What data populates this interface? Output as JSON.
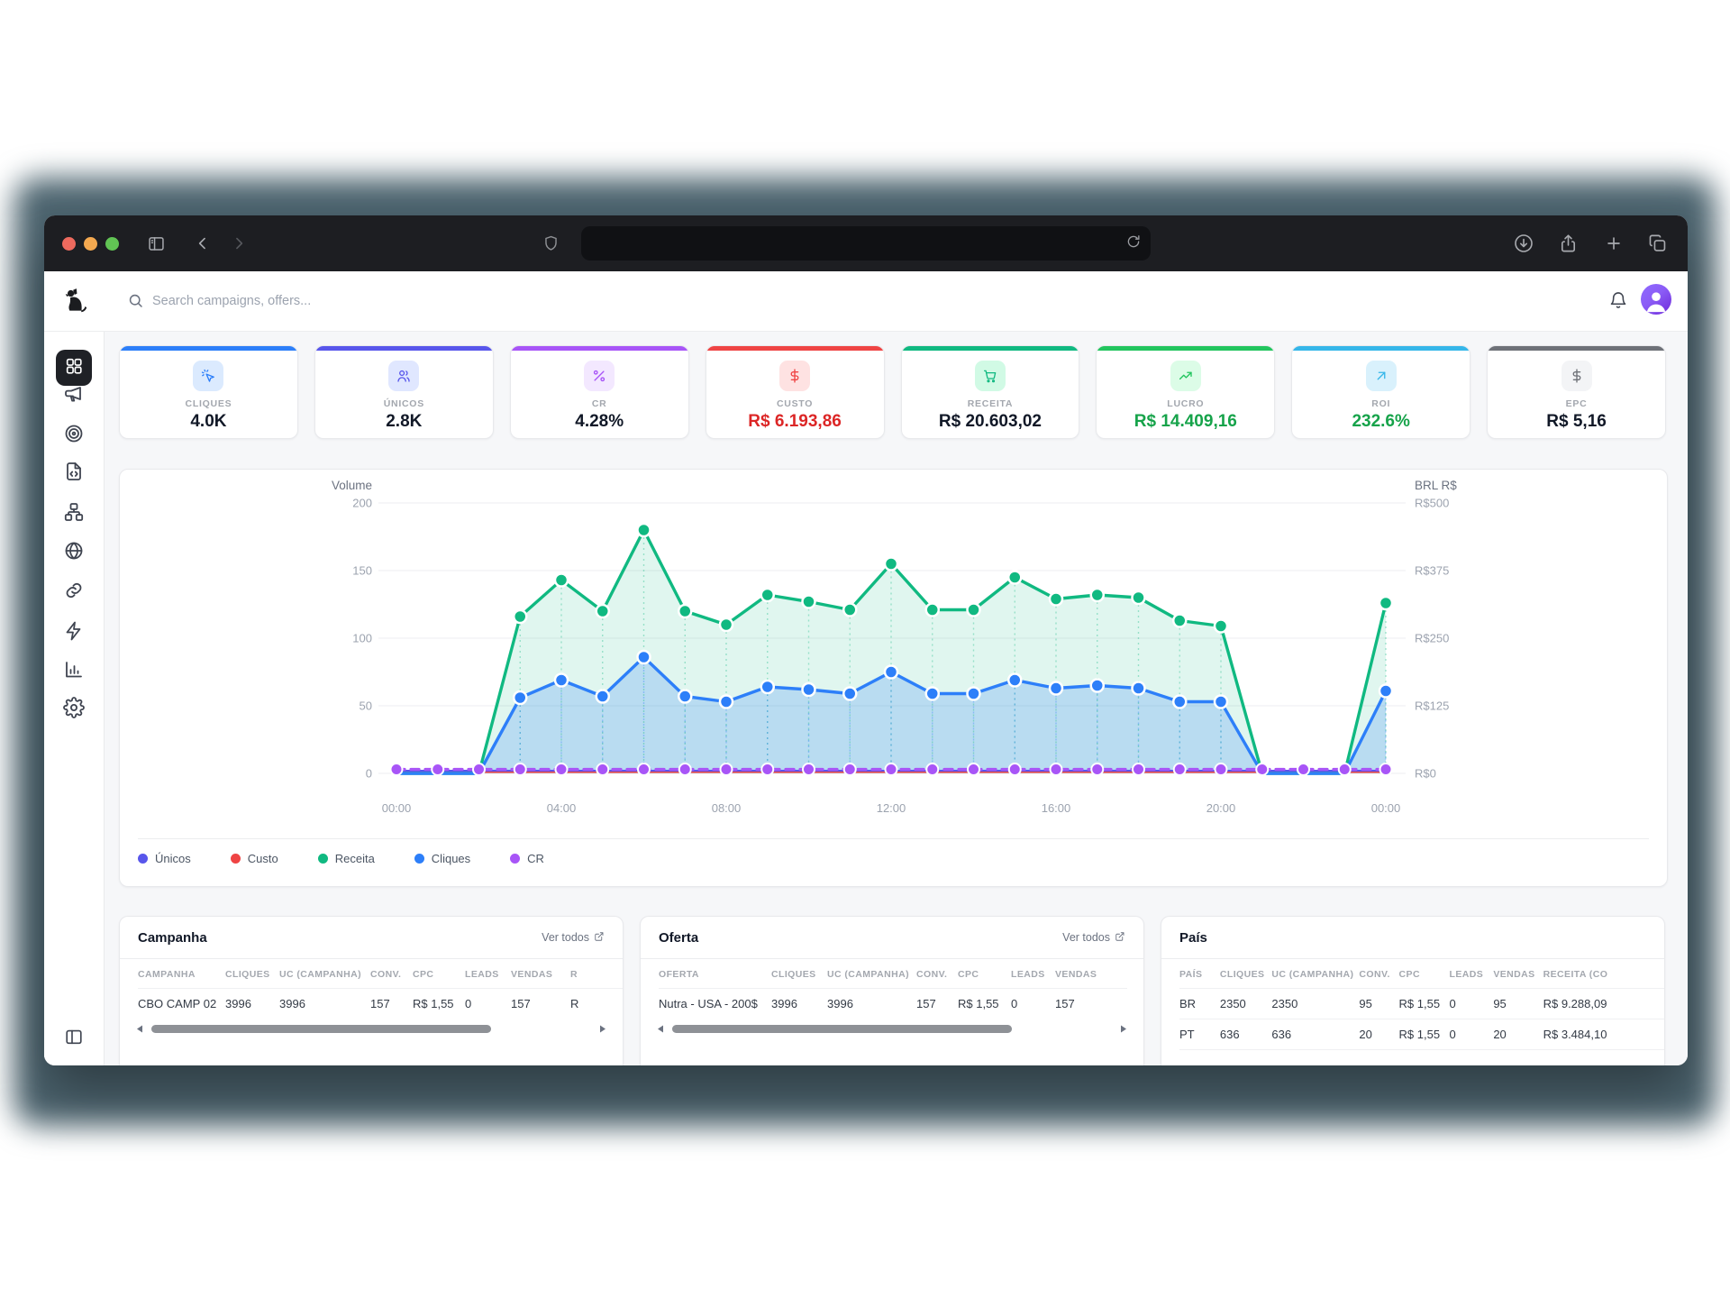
{
  "browser": {
    "traffic_lights": [
      "close",
      "minimize",
      "zoom"
    ],
    "toolbar_icon_names": [
      "panel-sidebar-icon",
      "back-icon",
      "forward-icon",
      "shield-icon",
      "reload-icon",
      "download-icon",
      "share-icon",
      "new-tab-icon",
      "tabs-icon"
    ],
    "url_value": ""
  },
  "app": {
    "logo_icon": "dog-logo",
    "header": {
      "search_placeholder": "Search campaigns, offers...",
      "icon_names": [
        "search-icon",
        "bell-icon",
        "user-avatar"
      ]
    },
    "sidebar": {
      "items": [
        {
          "id": "dashboard",
          "icon": "dashboard",
          "active": true
        },
        {
          "id": "campaigns",
          "icon": "megaphone",
          "active": false
        },
        {
          "id": "offers",
          "icon": "target",
          "active": false
        },
        {
          "id": "landers",
          "icon": "file-code",
          "active": false
        },
        {
          "id": "funnels",
          "icon": "sitemap",
          "active": false
        },
        {
          "id": "domains",
          "icon": "globe",
          "active": false
        },
        {
          "id": "links",
          "icon": "link",
          "active": false
        },
        {
          "id": "automation",
          "icon": "zap",
          "active": false
        },
        {
          "id": "reports",
          "icon": "bar-chart",
          "active": false
        },
        {
          "id": "settings",
          "icon": "gear",
          "active": false
        }
      ],
      "collapse_icon": "panel-left-icon"
    },
    "kpis": [
      {
        "label": "CLIQUES",
        "value": "4.0K",
        "accent": "#2d7ff9",
        "icon": "cursor-click",
        "icon_bg": "#dbeafe",
        "value_color": "#111827"
      },
      {
        "label": "ÚNICOS",
        "value": "2.8K",
        "accent": "#5856eb",
        "icon": "users",
        "icon_bg": "#e0e7ff",
        "value_color": "#111827"
      },
      {
        "label": "CR",
        "value": "4.28%",
        "accent": "#a855f7",
        "icon": "percent",
        "icon_bg": "#f3e8ff",
        "value_color": "#111827"
      },
      {
        "label": "CUSTO",
        "value": "R$ 6.193,86",
        "accent": "#ef4444",
        "icon": "dollar",
        "icon_bg": "#fee2e2",
        "value_color": "#dc2626"
      },
      {
        "label": "RECEITA",
        "value": "R$ 20.603,02",
        "accent": "#10b981",
        "icon": "cart",
        "icon_bg": "#d1fae5",
        "value_color": "#111827"
      },
      {
        "label": "LUCRO",
        "value": "R$ 14.409,16",
        "accent": "#22c55e",
        "icon": "trend-up",
        "icon_bg": "#dcfce7",
        "value_color": "#16a34a"
      },
      {
        "label": "ROI",
        "value": "232.6%",
        "accent": "#35b6e9",
        "icon": "arrow-up-right",
        "icon_bg": "#d9f1fc",
        "value_color": "#16a34a"
      },
      {
        "label": "EPC",
        "value": "R$ 5,16",
        "accent": "#6e7178",
        "icon": "dollar",
        "icon_bg": "#f3f4f6",
        "value_color": "#111827"
      }
    ],
    "chart_data": {
      "type": "line",
      "x": [
        "00:00",
        "01:00",
        "02:00",
        "03:00",
        "04:00",
        "05:00",
        "06:00",
        "07:00",
        "08:00",
        "09:00",
        "10:00",
        "11:00",
        "12:00",
        "13:00",
        "14:00",
        "15:00",
        "16:00",
        "17:00",
        "18:00",
        "19:00",
        "20:00",
        "21:00",
        "22:00",
        "23:00",
        "00:00"
      ],
      "x_tick_labels": [
        "00:00",
        "04:00",
        "08:00",
        "12:00",
        "16:00",
        "20:00",
        "00:00"
      ],
      "left_axis": {
        "title": "Volume",
        "ticks": [
          0,
          50,
          100,
          150,
          200
        ],
        "range": [
          0,
          200
        ]
      },
      "right_axis": {
        "title": "BRL R$",
        "ticks": [
          "R$0",
          "R$125",
          "R$250",
          "R$375",
          "R$500"
        ],
        "range": [
          0,
          500
        ]
      },
      "grid": true,
      "legend_position": "bottom",
      "series": [
        {
          "name": "Únicos",
          "color": "#5856eb",
          "area": false,
          "dashed": false,
          "dots": "none",
          "values": [
            2,
            2,
            2,
            2,
            2,
            2,
            2,
            2,
            2,
            2,
            2,
            2,
            2,
            2,
            2,
            2,
            2,
            2,
            2,
            2,
            2,
            2,
            2,
            2,
            2
          ]
        },
        {
          "name": "Custo",
          "color": "#ef4444",
          "area": false,
          "dashed": false,
          "dots": "none",
          "values": [
            1,
            1,
            1,
            1,
            1,
            1,
            1,
            1,
            1,
            1,
            1,
            1,
            1,
            1,
            1,
            1,
            1,
            1,
            1,
            1,
            1,
            1,
            1,
            1,
            1
          ]
        },
        {
          "name": "Receita",
          "color": "#10b981",
          "fill": "rgba(16,185,129,0.13)",
          "area": true,
          "dashed": false,
          "dots": "nonzero",
          "values": [
            0,
            0,
            0,
            116,
            143,
            120,
            180,
            120,
            110,
            132,
            127,
            121,
            155,
            121,
            121,
            145,
            129,
            132,
            130,
            113,
            109,
            0,
            0,
            0,
            126
          ]
        },
        {
          "name": "Cliques",
          "color": "#2d7ff9",
          "fill": "rgba(45,127,249,0.22)",
          "area": true,
          "dashed": false,
          "dots": "nonzero",
          "values": [
            0,
            0,
            0,
            56,
            69,
            57,
            86,
            57,
            53,
            64,
            62,
            59,
            75,
            59,
            59,
            69,
            63,
            65,
            63,
            53,
            53,
            0,
            0,
            0,
            61
          ]
        },
        {
          "name": "CR",
          "color": "#a855f7",
          "area": false,
          "dashed": true,
          "dots": "all",
          "values": [
            3,
            3,
            3,
            3,
            3,
            3,
            3,
            3,
            3,
            3,
            3,
            3,
            3,
            3,
            3,
            3,
            3,
            3,
            3,
            3,
            3,
            3,
            3,
            3,
            3
          ]
        }
      ],
      "legend": [
        "Únicos",
        "Custo",
        "Receita",
        "Cliques",
        "CR"
      ]
    },
    "tables": {
      "campanha": {
        "title": "Campanha",
        "link_label": "Ver todos",
        "columns": [
          "CAMPANHA",
          "CLIQUES",
          "UC (CAMPANHA)",
          "CONV.",
          "CPC",
          "LEADS",
          "VENDAS",
          "R"
        ],
        "rows": [
          [
            "CBO CAMP 02",
            "3996",
            "3996",
            "157",
            "R$ 1,55",
            "0",
            "157",
            "R"
          ]
        ],
        "scrollbar": true
      },
      "oferta": {
        "title": "Oferta",
        "link_label": "Ver todos",
        "columns": [
          "OFERTA",
          "CLIQUES",
          "UC (CAMPANHA)",
          "CONV.",
          "CPC",
          "LEADS",
          "VENDAS"
        ],
        "rows": [
          [
            "Nutra - USA - 200$",
            "3996",
            "3996",
            "157",
            "R$ 1,55",
            "0",
            "157"
          ]
        ],
        "scrollbar": true
      },
      "pais": {
        "title": "País",
        "link_label": "",
        "columns": [
          "PAÍS",
          "CLIQUES",
          "UC (CAMPANHA)",
          "CONV.",
          "CPC",
          "LEADS",
          "VENDAS",
          "RECEITA (CO"
        ],
        "rows": [
          [
            "BR",
            "2350",
            "2350",
            "95",
            "R$ 1,55",
            "0",
            "95",
            "R$ 9.288,09"
          ],
          [
            "PT",
            "636",
            "636",
            "20",
            "R$ 1,55",
            "0",
            "20",
            "R$ 3.484,10"
          ]
        ],
        "scrollbar": false
      }
    }
  }
}
